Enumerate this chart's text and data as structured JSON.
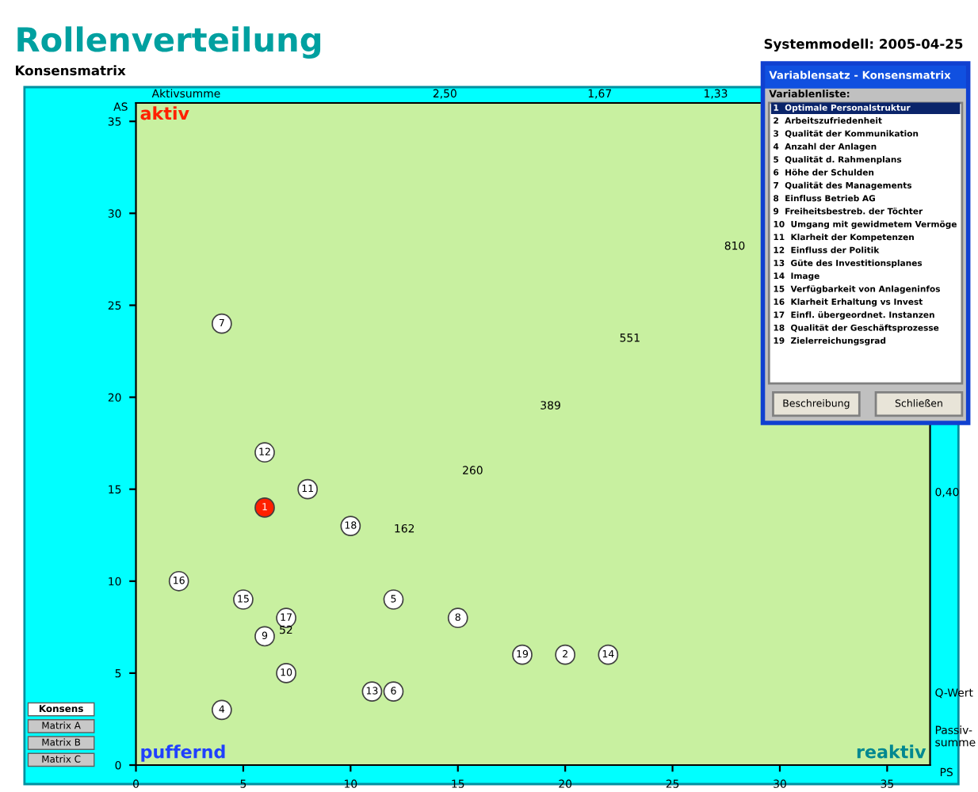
{
  "chart_data": [
    {
      "type": "scatter",
      "title": "Rollenverteilung",
      "subtitle": "Konsensmatrix",
      "xlabel": "PS",
      "ylabel": "AS",
      "xlim": [
        0,
        37
      ],
      "ylim": [
        0,
        36
      ],
      "xticks": [
        0,
        5,
        10,
        15,
        20,
        25,
        30,
        35
      ],
      "yticks": [
        0,
        5,
        10,
        15,
        20,
        25,
        30,
        35
      ],
      "marker": "circle",
      "grid": false,
      "legend": false,
      "series": [
        {
          "x": [
            6,
            20,
            4,
            12,
            12,
            4,
            15,
            6,
            7,
            8,
            6,
            11,
            22,
            5,
            2,
            7,
            10,
            18
          ],
          "values": [
            14,
            6,
            3,
            9,
            4,
            24,
            8,
            7,
            5,
            15,
            17,
            4,
            6,
            9,
            10,
            8,
            13,
            6
          ],
          "colors": [
            "#ff2000",
            "#ffffff",
            "#ffffff",
            "#ffffff",
            "#ffffff",
            "#ffffff",
            "#ffffff",
            "#ffffff",
            "#ffffff",
            "#ffffff",
            "#ffffff",
            "#ffffff",
            "#ffffff",
            "#ffffff",
            "#ffffff",
            "#ffffff",
            "#ffffff",
            "#ffffff"
          ]
        }
      ],
      "annotations": [
        "Systemmodell: 2005-04-25",
        "aktiv",
        "puffernd",
        "reaktiv",
        "Passiv-\nsumme",
        "Aktivsumme",
        "Q-Wert",
        {
          "text": "1",
          "x": 6,
          "y": 14
        },
        {
          "text": "2",
          "x": 20,
          "y": 6
        },
        {
          "text": "4",
          "x": 4,
          "y": 3
        },
        {
          "text": "5",
          "x": 12,
          "y": 9
        },
        {
          "text": "6",
          "x": 12,
          "y": 4
        },
        {
          "text": "7",
          "x": 4,
          "y": 24
        },
        {
          "text": "8",
          "x": 15,
          "y": 8
        },
        {
          "text": "9",
          "x": 6,
          "y": 7
        },
        {
          "text": "10",
          "x": 7,
          "y": 5
        },
        {
          "text": "11",
          "x": 8,
          "y": 15
        },
        {
          "text": "12",
          "x": 6,
          "y": 17
        },
        {
          "text": "13",
          "x": 11,
          "y": 4
        },
        {
          "text": "14",
          "x": 22,
          "y": 6
        },
        {
          "text": "15",
          "x": 5,
          "y": 9
        },
        {
          "text": "16",
          "x": 2,
          "y": 10
        },
        {
          "text": "17",
          "x": 7,
          "y": 8
        },
        {
          "text": "18",
          "x": 10,
          "y": 13
        },
        {
          "text": "19",
          "x": 18,
          "y": 6
        },
        "52",
        "162",
        "260",
        "389",
        "551",
        "810",
        "2,50",
        "1,67",
        "1,33",
        "0,40"
      ]
    },
    {
      "type": "other",
      "title": "Variablensatz - Konsensmatrix",
      "annotations": [
        "Variablenliste:",
        "1  Optimale Personalstruktur",
        "2  Arbeitszufriedenheit",
        "3  Qualität der Kommunikation",
        "4  Anzahl der Anlagen",
        "5  Qualität d. Rahmenplans",
        "6  Höhe der Schulden",
        "7  Qualität des Managements",
        "8  Einfluss Betrieb AG",
        "9  Freiheitsbestreb. der Töchter",
        "10  Umgang mit gewidmetem Vermöge",
        "11  Klarheit der Kompetenzen",
        "12  Einfluss der Politik",
        "13  Güte des Investitionsplanes",
        "14  Image",
        "15  Verfügbarkeit von Anlageninfos",
        "16  Klarheit Erhaltung vs Invest",
        "17  Einfl. übergeordnet. Instanzen",
        "18  Qualität der Geschäftsprozesse",
        "19  Zielerreichungsgrad",
        "Beschreibung",
        "Schließen"
      ]
    },
    {
      "type": "other",
      "annotations": [
        "Konsens",
        "Matrix A",
        "Matrix B",
        "Matrix C"
      ]
    }
  ]
}
